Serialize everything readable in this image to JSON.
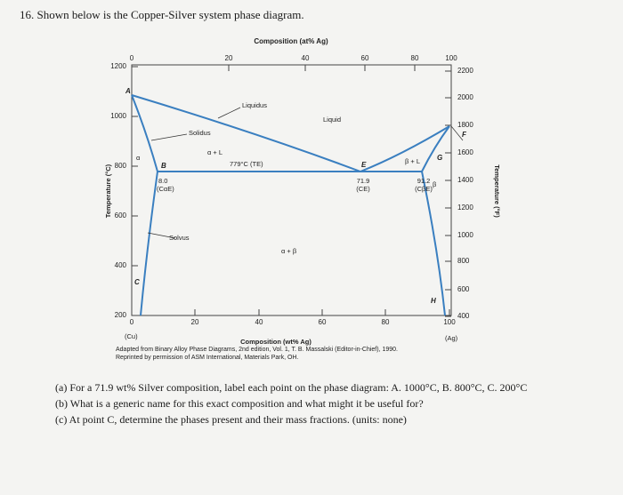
{
  "question": {
    "title": "16. Shown below is the Copper-Silver system phase diagram."
  },
  "diagram": {
    "top_axis_title": "Composition (at% Ag)",
    "top_ticks": [
      0,
      20,
      40,
      60,
      80,
      100
    ],
    "left_axis_title": "Temperature (°C)",
    "left_ticks": [
      1200,
      1000,
      800,
      600,
      400,
      200
    ],
    "right_axis_title": "Temperature (°F)",
    "right_ticks": [
      2200,
      2000,
      1800,
      1600,
      1400,
      1200,
      1000,
      800,
      600,
      400
    ],
    "bottom_axis_title": "Composition (wt% Ag)",
    "bottom_ticks": [
      0,
      20,
      40,
      60,
      80,
      100
    ],
    "left_end": "(Cu)",
    "right_end": "(Ag)",
    "labels": [
      "Liquidus",
      "Liquid",
      "Solidus",
      "α + L",
      "779°C (TE)",
      "α",
      "β + L",
      "β",
      "Solvus",
      "α + β",
      "8.0",
      "(CαE)",
      "71.9",
      "(CE)",
      "91.2",
      "(CβE)"
    ],
    "points": [
      "A",
      "B",
      "C",
      "E",
      "F",
      "G",
      "H"
    ]
  },
  "caption": [
    "Adapted from Binary Alloy Phase Diagrams, 2nd edition, Vol. 1, T. B. Massalski (Editor-in-Chief), 1990.",
    "Reprinted by permission of ASM International, Materials Park, OH."
  ],
  "parts": [
    "(a) For a 71.9 wt% Silver composition, label each point on the phase diagram: A. 1000°C, B. 800°C, C. 200°C",
    "(b) What is a generic name for this exact composition and what might it be useful for?",
    "(c) At point C, determine the phases present and their mass fractions. (units: none)"
  ]
}
